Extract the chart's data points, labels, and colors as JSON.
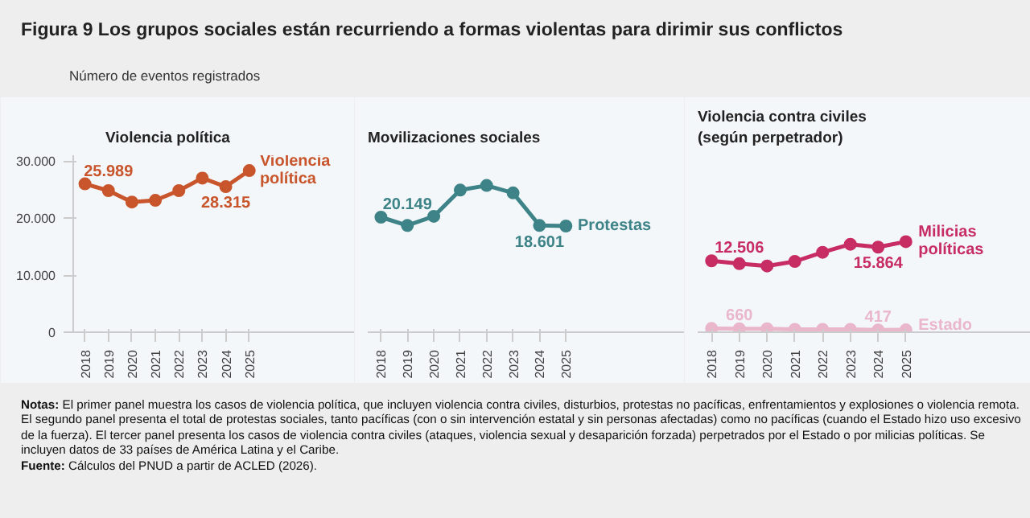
{
  "chart_data": [
    {
      "type": "line",
      "title": "Figura 9 Los grupos sociales están recurriendo a formas violentas para dirimir sus conflictos",
      "subtitle": "Violencia política",
      "ylabel": "Número de eventos registrados",
      "categories": [
        "2018",
        "2019",
        "2020",
        "2021",
        "2022",
        "2023",
        "2024",
        "2025"
      ],
      "ylim": [
        0,
        31000
      ],
      "yticks": [
        0,
        {
          "value": 10000,
          "label": "10.000"
        },
        {
          "value": 20000,
          "label": "20.000"
        },
        {
          "value": 30000,
          "label": "30.000"
        }
      ],
      "grid": false,
      "legend": false,
      "marker": "circle",
      "line_style": "solid",
      "series": [
        {
          "name": "Violencia política",
          "color": "#c8552b",
          "values": [
            25989,
            24800,
            22800,
            23100,
            24800,
            27000,
            25500,
            28315
          ],
          "value_labels": [
            "25.989",
            null,
            null,
            null,
            null,
            null,
            null,
            "28.315"
          ]
        }
      ],
      "annotations": [
        "Notas: El primer panel muestra los casos de violencia política, que incluyen violencia contra civiles, disturbios, protestas no pacíficas, enfrentamientos y explosiones o violencia remota. El segundo panel presenta el total de protestas sociales, tanto pacíficas (con o sin intervención estatal y sin personas afectadas) como no pacíficas (cuando el Estado hizo uso excesivo de la fuerza). El tercer panel presenta los casos de violencia contra civiles (ataques, violencia sexual y desaparición forzada) perpetrados por el Estado o por milicias políticas. Se incluyen datos de 33 países de América Latina y el Caribe.",
        "Fuente: Cálculos del PNUD a partir de ACLED (2026)."
      ]
    },
    {
      "type": "line",
      "title": "Movilizaciones sociales",
      "categories": [
        "2018",
        "2019",
        "2020",
        "2021",
        "2022",
        "2023",
        "2024",
        "2025"
      ],
      "ylim": [
        0,
        31000
      ],
      "tick_labels": "x",
      "grid": false,
      "legend": false,
      "marker": "circle",
      "line_style": "solid",
      "series": [
        {
          "name": "Protestas",
          "color": "#3d8387",
          "values": [
            20149,
            18700,
            20300,
            24900,
            25700,
            24400,
            18700,
            18601
          ],
          "value_labels": [
            "20.149",
            null,
            null,
            null,
            null,
            null,
            null,
            "18.601"
          ]
        }
      ]
    },
    {
      "type": "line",
      "title": "Violencia contra civiles (según perpetrador)",
      "categories": [
        "2018",
        "2019",
        "2020",
        "2021",
        "2022",
        "2023",
        "2024",
        "2025"
      ],
      "ylim": [
        0,
        31000
      ],
      "tick_labels": "x",
      "grid": false,
      "legend": false,
      "marker": "circle",
      "line_style": "solid",
      "series": [
        {
          "name": "Milicias políticas",
          "color": "#c72c62",
          "values": [
            12506,
            12000,
            11600,
            12400,
            14000,
            15400,
            14900,
            15864
          ],
          "value_labels": [
            "12.506",
            null,
            null,
            null,
            null,
            null,
            null,
            "15.864"
          ]
        },
        {
          "name": "Estado",
          "color": "#eab6ca",
          "values": [
            660,
            600,
            600,
            500,
            500,
            500,
            400,
            417
          ],
          "value_labels": [
            "660",
            null,
            null,
            null,
            null,
            null,
            null,
            "417"
          ]
        }
      ]
    }
  ]
}
